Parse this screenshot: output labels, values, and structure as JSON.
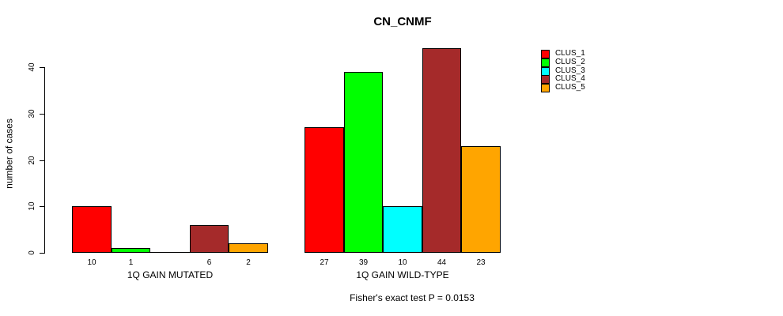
{
  "chart_data": {
    "type": "bar",
    "title": "CN_CNMF",
    "ylabel": "number of cases",
    "categories": [
      "1Q GAIN MUTATED",
      "1Q GAIN WILD-TYPE"
    ],
    "series": [
      {
        "name": "CLUS_1",
        "color": "#ff0000",
        "values": [
          10,
          27
        ]
      },
      {
        "name": "CLUS_2",
        "color": "#00ff00",
        "values": [
          1,
          39
        ]
      },
      {
        "name": "CLUS_3",
        "color": "#00ffff",
        "values": [
          0,
          10
        ]
      },
      {
        "name": "CLUS_4",
        "color": "#a52a2a",
        "values": [
          6,
          44
        ]
      },
      {
        "name": "CLUS_5",
        "color": "#ffa500",
        "values": [
          2,
          23
        ]
      }
    ],
    "yticks": [
      0,
      10,
      20,
      30,
      40
    ],
    "ylim": [
      0,
      44
    ],
    "grid": false,
    "legend_position": "right",
    "bar_value_labels_shown": true,
    "zero_value_labels_hidden": true,
    "annotation": "Fisher's exact test P = 0.0153",
    "background_color": "#ffffff",
    "axis_color": "#000000",
    "bar_border_color": "#000000"
  }
}
